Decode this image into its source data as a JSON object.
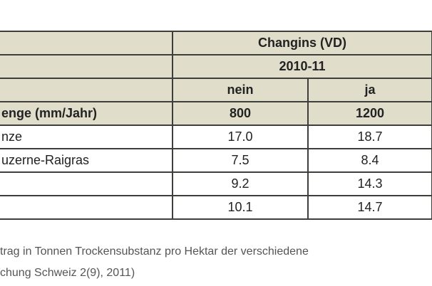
{
  "table": {
    "site": "Changins (VD)",
    "period": "2010-11",
    "irrigation": [
      "nein",
      "ja"
    ],
    "precip_label": "enge (mm/Jahr)",
    "precip": [
      "800",
      "1200"
    ],
    "rows": [
      {
        "label": "nze",
        "values": [
          "17.0",
          "18.7"
        ]
      },
      {
        "label": "uzerne-Raigras",
        "values": [
          "7.5",
          "8.4"
        ]
      },
      {
        "label": "",
        "values": [
          "9.2",
          "14.3"
        ]
      },
      {
        "label": "",
        "values": [
          "10.1",
          "14.7"
        ]
      }
    ]
  },
  "caption": {
    "line1": "trag in Tonnen Trockensubstanz pro Hektar der verschiedene",
    "line2": "chung Schweiz 2(9), 2011)"
  }
}
